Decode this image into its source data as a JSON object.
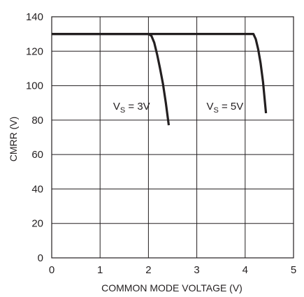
{
  "chart_data": {
    "type": "line",
    "title": "",
    "xlabel": "COMMON MODE VOLTAGE (V)",
    "ylabel": "CMRR (V)",
    "xlim": [
      0,
      5
    ],
    "ylim": [
      0,
      140
    ],
    "xticks": [
      0,
      1,
      2,
      3,
      4,
      5
    ],
    "yticks": [
      0,
      20,
      40,
      60,
      80,
      100,
      120,
      140
    ],
    "grid": true,
    "series": [
      {
        "x": [
          0,
          1.8,
          2.0,
          2.06,
          2.12,
          2.18,
          2.24,
          2.3,
          2.36,
          2.42
        ],
        "y": [
          130,
          130,
          130,
          129,
          125,
          118,
          110,
          101,
          90,
          77
        ]
      },
      {
        "x": [
          0,
          3.5,
          4.1,
          4.17,
          4.22,
          4.27,
          4.32,
          4.37,
          4.43
        ],
        "y": [
          130,
          130,
          130,
          130,
          127,
          121,
          113,
          102,
          84
        ]
      }
    ],
    "annotations": [
      {
        "text_main": "V",
        "text_sub": "S",
        "text_rest": " = 3V",
        "x": 1.27,
        "y": 86
      },
      {
        "text_main": "V",
        "text_sub": "S",
        "text_rest": " = 5V",
        "x": 3.2,
        "y": 86
      }
    ]
  }
}
